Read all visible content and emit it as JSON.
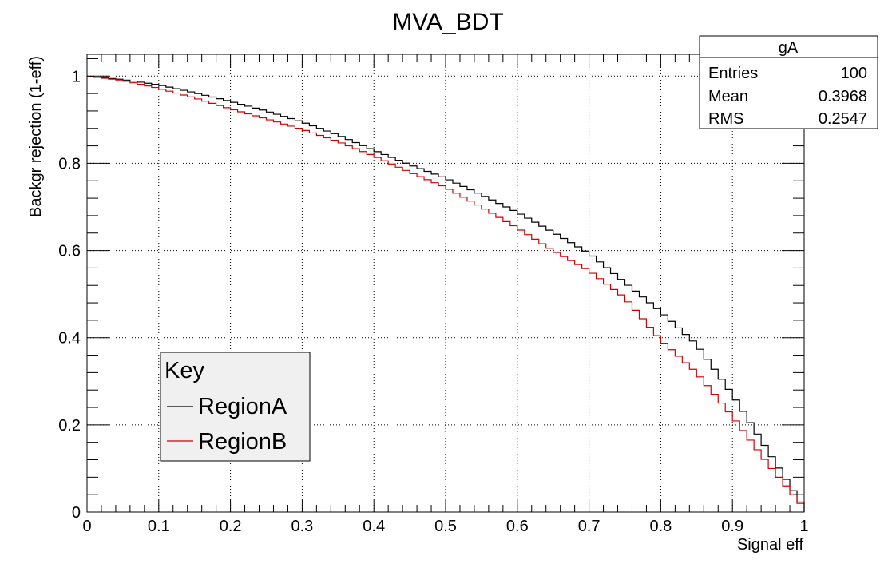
{
  "chart_data": {
    "type": "line",
    "step": true,
    "title": "MVA_BDT",
    "xlabel": "Signal eff",
    "ylabel": "Backgr rejection (1-eff)",
    "xlim": [
      0,
      1
    ],
    "ylim": [
      0,
      1.05
    ],
    "grid": true,
    "x_ticks": [
      0,
      0.1,
      0.2,
      0.3,
      0.4,
      0.5,
      0.6,
      0.7,
      0.8,
      0.9,
      1
    ],
    "x_tick_labels": [
      "0",
      "0.1",
      "0.2",
      "0.3",
      "0.4",
      "0.5",
      "0.6",
      "0.7",
      "0.8",
      "0.9",
      "1"
    ],
    "y_ticks": [
      0,
      0.2,
      0.4,
      0.6,
      0.8,
      1
    ],
    "y_tick_labels": [
      "0",
      "0.2",
      "0.4",
      "0.6",
      "0.8",
      "1"
    ],
    "bins": 100,
    "series": [
      {
        "name": "RegionA",
        "color": "#000000",
        "x": [
          0.05,
          0.1,
          0.15,
          0.2,
          0.25,
          0.3,
          0.35,
          0.4,
          0.45,
          0.5,
          0.55,
          0.6,
          0.65,
          0.7,
          0.75,
          0.8,
          0.85,
          0.9,
          0.95,
          1.0
        ],
        "y": [
          0.992,
          0.98,
          0.962,
          0.942,
          0.92,
          0.895,
          0.865,
          0.83,
          0.797,
          0.766,
          0.728,
          0.688,
          0.642,
          0.594,
          0.527,
          0.46,
          0.385,
          0.27,
          0.14,
          0.01
        ]
      },
      {
        "name": "RegionB",
        "color": "#d00000",
        "x": [
          0.05,
          0.1,
          0.15,
          0.2,
          0.25,
          0.3,
          0.35,
          0.4,
          0.45,
          0.5,
          0.55,
          0.6,
          0.65,
          0.7,
          0.75,
          0.8,
          0.85,
          0.9,
          0.95,
          1.0
        ],
        "y": [
          0.99,
          0.972,
          0.95,
          0.925,
          0.902,
          0.878,
          0.85,
          0.817,
          0.78,
          0.745,
          0.7,
          0.652,
          0.6,
          0.554,
          0.492,
          0.395,
          0.32,
          0.22,
          0.11,
          0.01
        ]
      }
    ],
    "stats_box": {
      "title": "gA",
      "rows": [
        {
          "label": "Entries",
          "value": "100"
        },
        {
          "label": "Mean",
          "value": "0.3968"
        },
        {
          "label": "RMS",
          "value": "0.2547"
        }
      ],
      "placement": "top-right"
    },
    "legend": {
      "title": "Key",
      "entries": [
        "RegionA",
        "RegionB"
      ],
      "placement": "bottom-left"
    }
  }
}
